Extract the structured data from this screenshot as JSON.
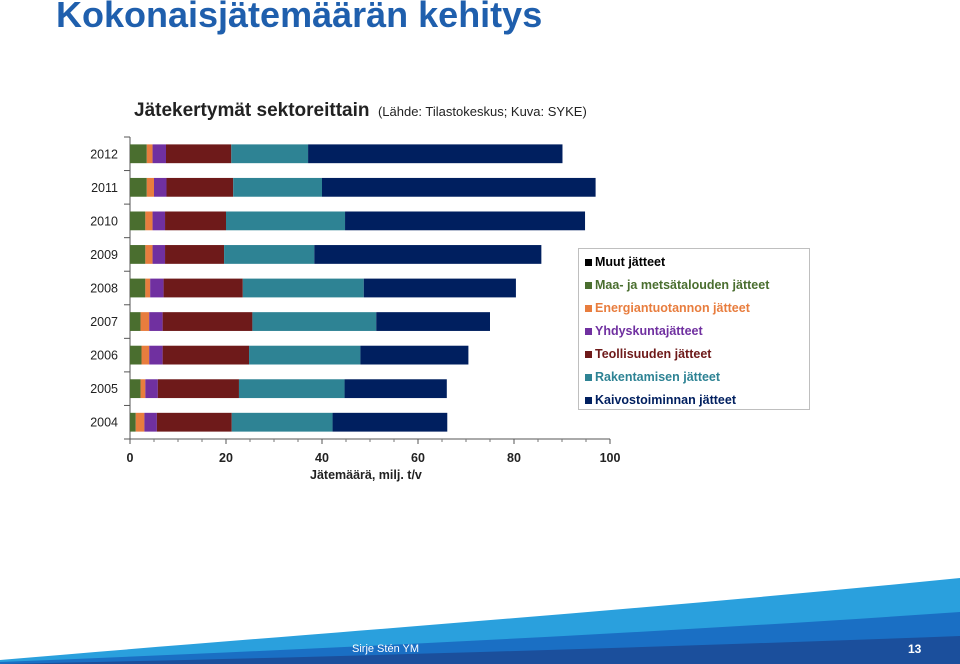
{
  "slide": {
    "title": "Kokonaisjätemäärän kehitys",
    "author": "Sirje Stén YM",
    "page_number": "13"
  },
  "chart_data": {
    "type": "bar",
    "orientation": "horizontal",
    "stacked": true,
    "title": "Jätekertymät sektoreittain",
    "subtitle": "(Lähde: Tilastokeskus; Kuva: SYKE)",
    "xlabel": "Jätemäärä, milj. t/v",
    "ylabel": "",
    "xlim": [
      0,
      100
    ],
    "xticks": [
      0,
      20,
      40,
      60,
      80,
      100
    ],
    "grid": false,
    "legend_position": "right",
    "categories": [
      "2012",
      "2011",
      "2010",
      "2009",
      "2008",
      "2007",
      "2006",
      "2005",
      "2004"
    ],
    "series": [
      {
        "name": "Maa- ja metsätalouden jätteet",
        "color": "#4a6e2f",
        "values": [
          3.5,
          3.5,
          3.2,
          3.2,
          3.2,
          2.2,
          2.4,
          2.2,
          1.2
        ]
      },
      {
        "name": "Energiantuotannon jätteet",
        "color": "#e87d3e",
        "values": [
          1.2,
          1.5,
          1.5,
          1.5,
          1.0,
          1.8,
          1.6,
          1.0,
          1.8
        ]
      },
      {
        "name": "Yhdyskuntajätteet",
        "color": "#7030a0",
        "values": [
          2.8,
          2.6,
          2.6,
          2.6,
          2.8,
          2.8,
          2.8,
          2.6,
          2.6
        ]
      },
      {
        "name": "Teollisuuden jätteet",
        "color": "#6e1a1a",
        "values": [
          13.6,
          13.9,
          12.7,
          12.3,
          16.5,
          18.7,
          18.0,
          16.9,
          15.6
        ]
      },
      {
        "name": "Rakentamisen jätteet",
        "color": "#2e8394",
        "values": [
          16.0,
          18.5,
          24.8,
          18.8,
          25.2,
          25.8,
          23.2,
          22.0,
          21.0
        ]
      },
      {
        "name": "Kaivostoiminnan jätteet",
        "color": "#001f5f",
        "values": [
          53.0,
          57.0,
          50.0,
          47.3,
          31.7,
          23.7,
          22.5,
          21.3,
          23.9
        ]
      },
      {
        "name": "Muut jätteet",
        "color": "#000000",
        "values": [
          0,
          0,
          0,
          0,
          0,
          0,
          0,
          0,
          0
        ]
      }
    ],
    "legend_order": [
      "Muut jätteet",
      "Maa- ja metsätalouden jätteet",
      "Energiantuotannon jätteet",
      "Yhdyskuntajätteet",
      "Teollisuuden jätteet",
      "Rakentamisen jätteet",
      "Kaivostoiminnan jätteet"
    ]
  }
}
